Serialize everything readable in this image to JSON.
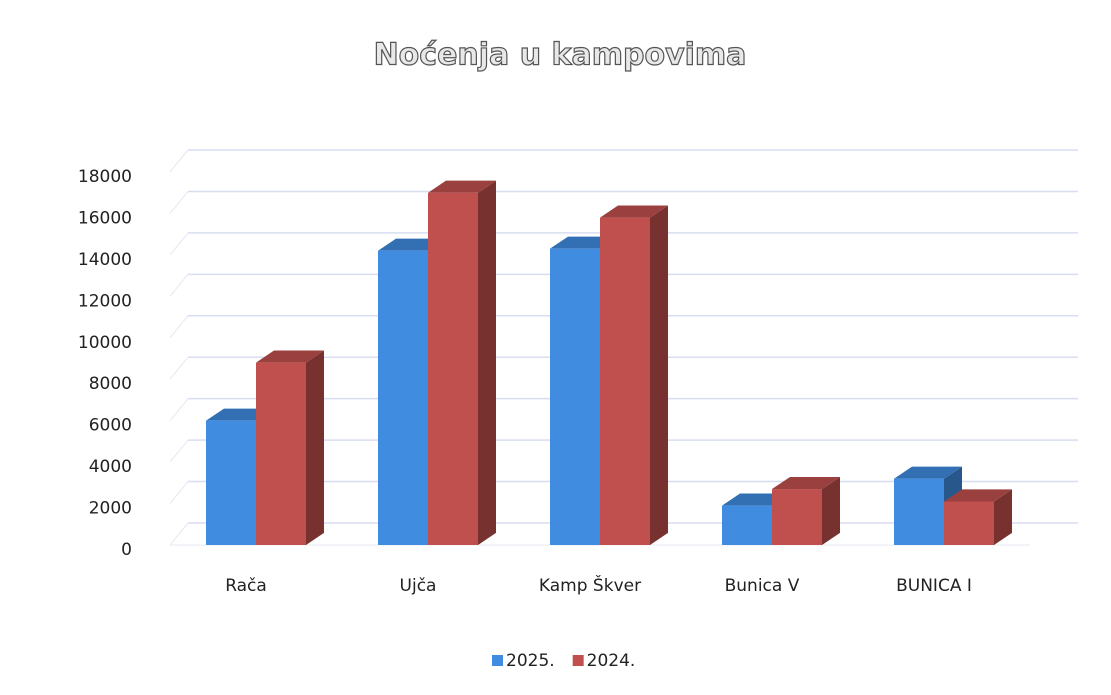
{
  "chart_data": {
    "type": "bar3d",
    "title": "Noćenja u kampovima",
    "categories": [
      "Rača",
      "Ujča",
      "Kamp Škver",
      "Bunica V",
      "BUNICA I"
    ],
    "series": [
      {
        "name": "2025.",
        "color": "#3f8ce0",
        "values": [
          6000,
          14200,
          14300,
          1900,
          3200
        ]
      },
      {
        "name": "2024.",
        "color": "#c0504d",
        "values": [
          8800,
          17000,
          15800,
          2700,
          2100
        ]
      }
    ],
    "ylim": [
      0,
      18000
    ],
    "yticks": [
      0,
      2000,
      4000,
      6000,
      8000,
      10000,
      12000,
      14000,
      16000,
      18000
    ],
    "grid": true,
    "legend": "bottom"
  }
}
